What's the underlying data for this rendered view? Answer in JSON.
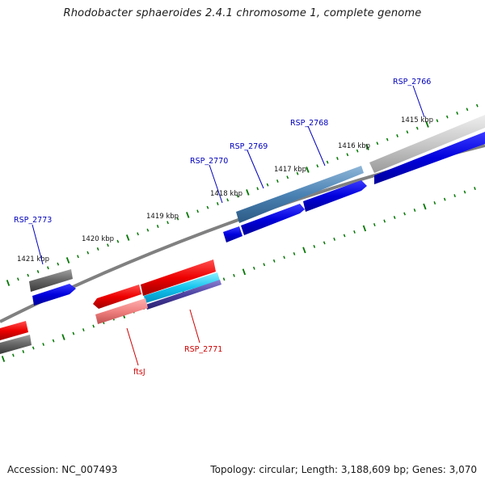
{
  "title": "Rhodobacter sphaeroides 2.4.1 chromosome 1, complete genome",
  "footer": {
    "accession": "Accession: NC_007493",
    "stats": "Topology: circular; Length: 3,188,609 bp; Genes: 3,070"
  },
  "colors": {
    "backbone": "#808080",
    "tick": "#007700",
    "label_blue": "#0000bb",
    "label_red": "#cc0000"
  },
  "scale": {
    "unit": "kbp",
    "ticks": [
      {
        "kbp": 1415,
        "label": "1415 kbp"
      },
      {
        "kbp": 1416,
        "label": "1416 kbp"
      },
      {
        "kbp": 1417,
        "label": "1417 kbp"
      },
      {
        "kbp": 1418,
        "label": "1418 kbp"
      },
      {
        "kbp": 1419,
        "label": "1419 kbp"
      },
      {
        "kbp": 1420,
        "label": "1420 kbp"
      },
      {
        "kbp": 1421,
        "label": "1421 kbp"
      }
    ]
  },
  "gene_labels": {
    "rsp_2766": "RSP_2766",
    "rsp_2768": "RSP_2768",
    "rsp_2769": "RSP_2769",
    "rsp_2770": "RSP_2770",
    "rsp_2773": "RSP_2773",
    "rsp_2771": "RSP_2771",
    "ftsj": "ftsJ"
  }
}
